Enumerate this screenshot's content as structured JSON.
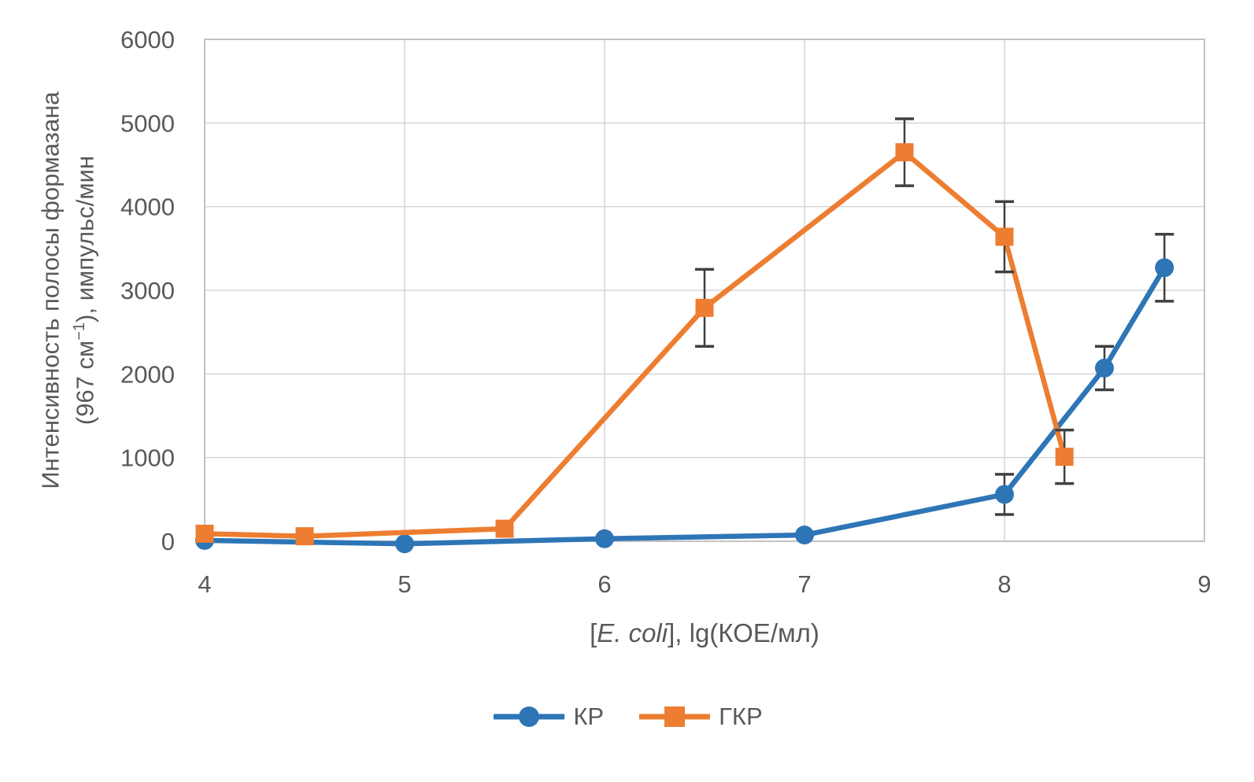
{
  "chart_data": {
    "type": "line",
    "title": "",
    "xlabel_pre": "[",
    "xlabel_italic": "E. coli",
    "xlabel_post": "], lg(КОЕ/мл)",
    "ylabel_line1": "Интенсивность полосы формазана",
    "ylabel_line2_pre": "(967 см",
    "ylabel_line2_sup": "−1",
    "ylabel_line2_post": "), импульс/мин",
    "xlim": [
      4,
      9
    ],
    "ylim": [
      0,
      6000
    ],
    "x_ticks": [
      4,
      5,
      6,
      7,
      8,
      9
    ],
    "y_ticks": [
      0,
      1000,
      2000,
      3000,
      4000,
      5000,
      6000
    ],
    "grid": true,
    "legend_position": "bottom",
    "colors": {
      "grid": "#D6D6D6",
      "border": "#C3C3C3",
      "tick_text": "#595959",
      "error_bar": "#404040"
    },
    "series": [
      {
        "name": "КР",
        "color": "#2E75B6",
        "marker": "circle",
        "x": [
          4,
          5,
          6,
          7,
          8,
          8.5,
          8.8
        ],
        "y": [
          10,
          -30,
          30,
          75,
          560,
          2070,
          3270
        ],
        "yerr": [
          0,
          0,
          0,
          0,
          240,
          260,
          400
        ]
      },
      {
        "name": "ГКР",
        "color": "#ED7D31",
        "marker": "square",
        "x": [
          4,
          4.5,
          5.5,
          6.5,
          7.5,
          8,
          8.3
        ],
        "y": [
          90,
          60,
          150,
          2790,
          4650,
          3640,
          1010
        ],
        "yerr": [
          0,
          0,
          0,
          460,
          400,
          420,
          320
        ]
      }
    ]
  }
}
